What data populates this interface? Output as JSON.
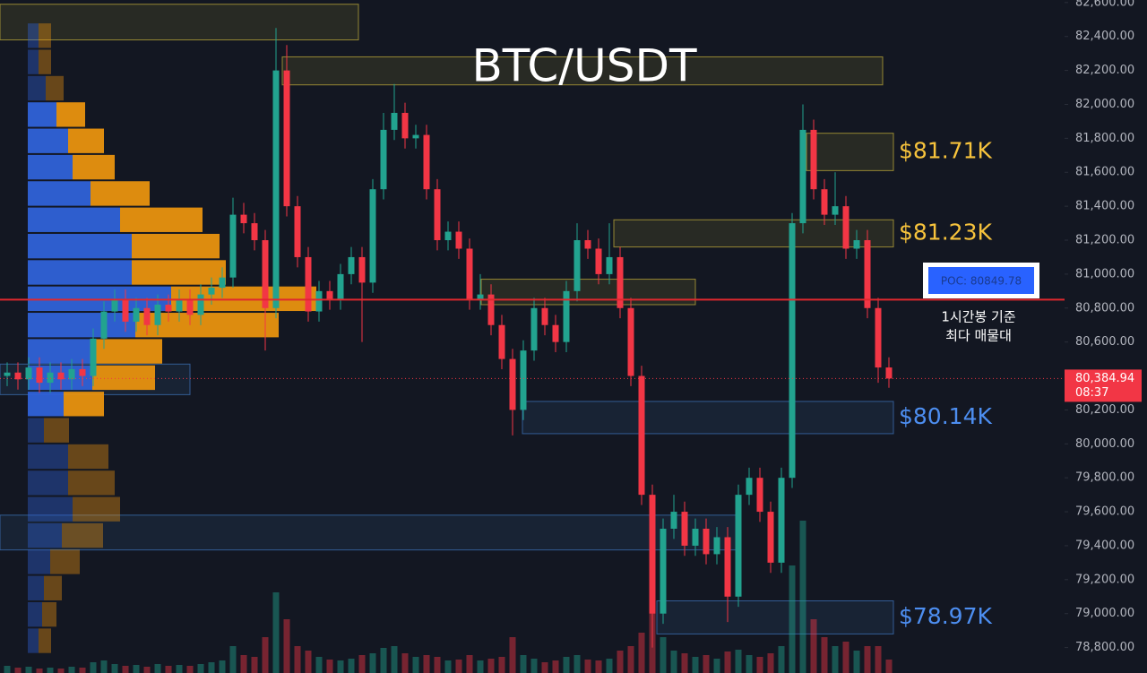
{
  "chart_data": {
    "type": "candlestick",
    "title": "BTC/USDT",
    "ylim": [
      78650,
      82615
    ],
    "yticks": [
      {
        "value": 82600,
        "label": "82,600.00"
      },
      {
        "value": 82400,
        "label": "82,400.00"
      },
      {
        "value": 82200,
        "label": "82,200.00"
      },
      {
        "value": 82000,
        "label": "82,000.00"
      },
      {
        "value": 81800,
        "label": "81,800.00"
      },
      {
        "value": 81600,
        "label": "81,600.00"
      },
      {
        "value": 81400,
        "label": "81,400.00"
      },
      {
        "value": 81200,
        "label": "81,200.00"
      },
      {
        "value": 81000,
        "label": "81,000.00"
      },
      {
        "value": 80800,
        "label": "80,800.00"
      },
      {
        "value": 80600,
        "label": "80,600.00"
      },
      {
        "value": 80200,
        "label": "80,200.00"
      },
      {
        "value": 80000,
        "label": "80,000.00"
      },
      {
        "value": 79800,
        "label": "79,800.00"
      },
      {
        "value": 79600,
        "label": "79,600.00"
      },
      {
        "value": 79400,
        "label": "79,400.00"
      },
      {
        "value": 79200,
        "label": "79,200.00"
      },
      {
        "value": 79000,
        "label": "79,000.00"
      },
      {
        "value": 78800,
        "label": "78,800.00"
      }
    ],
    "up_color": "#22a38f",
    "down_color": "#f23645",
    "candles": {
      "open": [
        80400,
        80420,
        80380,
        80450,
        80360,
        80420,
        80380,
        80440,
        80400,
        80620,
        80780,
        80850,
        80720,
        80800,
        80700,
        80820,
        80780,
        80850,
        80760,
        80880,
        80920,
        80980,
        81350,
        81300,
        81200,
        80800,
        82200,
        81400,
        81100,
        80780,
        80900,
        80850,
        81000,
        81100,
        80950,
        81500,
        81850,
        81950,
        81800,
        81820,
        81500,
        81200,
        81250,
        81150,
        80850,
        80880,
        80700,
        80500,
        80200,
        80550,
        80800,
        80700,
        80600,
        80900,
        81200,
        81150,
        81000,
        81100,
        80800,
        80400,
        79700,
        79000,
        79500,
        79600,
        79400,
        79500,
        79350,
        79450,
        79100,
        79700,
        79800,
        79600,
        79300,
        79800,
        81300,
        81850,
        81500,
        81350,
        81400,
        81150,
        81200,
        80800,
        80450
      ],
      "high": [
        80480,
        80480,
        80510,
        80510,
        80480,
        80480,
        80500,
        80500,
        80680,
        80840,
        80910,
        80910,
        80860,
        80860,
        80880,
        80880,
        80910,
        80910,
        80940,
        80980,
        81040,
        81450,
        81420,
        81360,
        81260,
        82450,
        82350,
        81460,
        81160,
        80960,
        80960,
        81060,
        81160,
        81160,
        81560,
        81950,
        82120,
        82010,
        81880,
        81880,
        81560,
        81310,
        81310,
        81210,
        81000,
        80940,
        80760,
        80560,
        80610,
        80860,
        80860,
        80760,
        80960,
        81300,
        81260,
        81210,
        81300,
        81160,
        80860,
        80460,
        79760,
        79560,
        79700,
        79660,
        79560,
        79560,
        79510,
        79510,
        79760,
        79860,
        79860,
        79660,
        79860,
        81360,
        82000,
        81910,
        81560,
        81600,
        81460,
        81260,
        81260,
        80860,
        80510
      ],
      "low": [
        80340,
        80320,
        80320,
        80300,
        80300,
        80320,
        80320,
        80340,
        80340,
        80560,
        80720,
        80660,
        80660,
        80640,
        80640,
        80720,
        80720,
        80700,
        80700,
        80820,
        80860,
        80920,
        81240,
        81140,
        80550,
        80740,
        81340,
        81040,
        80720,
        80720,
        80790,
        80790,
        80940,
        80600,
        80890,
        81440,
        81790,
        81740,
        81740,
        81440,
        81140,
        81140,
        81090,
        80790,
        80790,
        80640,
        80440,
        80050,
        80140,
        80490,
        80640,
        80540,
        80540,
        80840,
        81090,
        80940,
        80940,
        80740,
        80340,
        79640,
        78800,
        78940,
        79440,
        79340,
        79340,
        79290,
        79290,
        78950,
        79040,
        79640,
        79540,
        79240,
        79240,
        79740,
        81240,
        81440,
        81290,
        81290,
        81090,
        81090,
        80740,
        80360,
        80330
      ],
      "close": [
        80420,
        80380,
        80450,
        80360,
        80420,
        80380,
        80440,
        80400,
        80620,
        80780,
        80850,
        80720,
        80800,
        80700,
        80820,
        80780,
        80850,
        80760,
        80880,
        80920,
        80980,
        81350,
        81300,
        81200,
        80800,
        82200,
        81400,
        81100,
        80780,
        80900,
        80850,
        81000,
        81100,
        80950,
        81500,
        81850,
        81950,
        81800,
        81820,
        81500,
        81200,
        81250,
        81150,
        80850,
        80880,
        80700,
        80500,
        80200,
        80550,
        80800,
        80700,
        80600,
        80900,
        81200,
        81150,
        81000,
        81100,
        80800,
        80400,
        79700,
        79000,
        79500,
        79600,
        79400,
        79500,
        79350,
        79450,
        79100,
        79700,
        79800,
        79600,
        79300,
        79800,
        81300,
        81850,
        81500,
        81350,
        81400,
        81150,
        81200,
        80800,
        80450,
        80385
      ]
    },
    "volume": [
      8,
      6,
      7,
      5,
      6,
      5,
      7,
      6,
      12,
      14,
      10,
      8,
      9,
      7,
      10,
      8,
      9,
      8,
      10,
      12,
      14,
      30,
      20,
      18,
      40,
      90,
      60,
      30,
      25,
      18,
      15,
      14,
      16,
      20,
      22,
      28,
      30,
      22,
      18,
      20,
      18,
      14,
      15,
      20,
      14,
      16,
      18,
      40,
      20,
      16,
      12,
      14,
      18,
      20,
      15,
      14,
      16,
      25,
      30,
      45,
      70,
      40,
      25,
      22,
      18,
      20,
      16,
      24,
      26,
      20,
      18,
      22,
      30,
      120,
      170,
      60,
      40,
      30,
      35,
      25,
      30,
      30,
      15
    ],
    "volume_profile": {
      "levels": [
        82405,
        82250,
        82095,
        81940,
        81785,
        81630,
        81475,
        81320,
        81165,
        81010,
        80855,
        80700,
        80545,
        80390,
        80235,
        80080,
        79925,
        79770,
        79615,
        79460,
        79305,
        79150,
        78995,
        78840
      ],
      "buy": [
        12,
        12,
        20,
        32,
        45,
        50,
        70,
        103,
        116,
        116,
        160,
        120,
        72,
        72,
        40,
        18,
        45,
        45,
        50,
        38,
        25,
        18,
        16,
        12
      ],
      "sell": [
        14,
        14,
        20,
        32,
        40,
        47,
        66,
        92,
        98,
        105,
        162,
        160,
        78,
        70,
        45,
        28,
        45,
        52,
        53,
        46,
        33,
        20,
        16,
        14
      ],
      "value_area": [
        80150,
        81950
      ],
      "buy_color": "#2f62d8",
      "sell_color": "#e8920f"
    },
    "zones": [
      {
        "range": [
          82380,
          82590
        ],
        "color": "#c9b43a"
      },
      {
        "range": [
          82115,
          82280
        ],
        "color": "#c9b43a"
      },
      {
        "range": [
          81610,
          81830
        ],
        "color": "#c9b43a",
        "label": "$81.71K",
        "label_color": "#f7c33c"
      },
      {
        "range": [
          81160,
          81320
        ],
        "color": "#c9b43a",
        "label": "$81.23K",
        "label_color": "#f7c33c"
      },
      {
        "range": [
          80820,
          80970
        ],
        "color": "#c9b43a"
      },
      {
        "range": [
          80290,
          80470
        ],
        "color": "#3f78c0"
      },
      {
        "range": [
          80060,
          80250
        ],
        "color": "#3f78c0",
        "label": "$80.14K",
        "label_color": "#4d8ef0"
      },
      {
        "range": [
          79375,
          79580
        ],
        "color": "#3f78c0"
      },
      {
        "range": [
          78880,
          79075
        ],
        "color": "#3f78c0",
        "label": "$78.97K",
        "label_color": "#4d8ef0"
      }
    ],
    "poc": {
      "value": 80849.78,
      "label": "POC: 80849.78",
      "note": [
        "1시간봉 기준",
        "최다 매물대"
      ],
      "color": "#e0282e"
    },
    "last_price": {
      "value": 80384.94,
      "label": "80,384.94",
      "time": "08:37",
      "color": "#f23645"
    }
  }
}
